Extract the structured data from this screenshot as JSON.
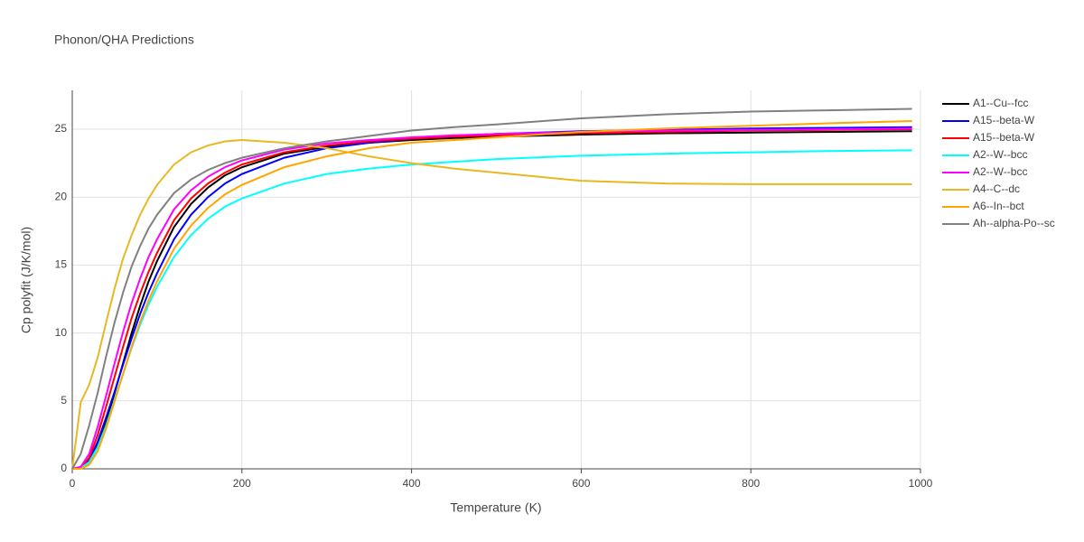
{
  "chart_data": {
    "type": "line",
    "title": "Phonon/QHA Predictions",
    "x_label": "Temperature (K)",
    "y_label": "Cp polyfit (J/K/mol)",
    "x": [
      0,
      10,
      20,
      30,
      40,
      50,
      60,
      70,
      80,
      90,
      100,
      120,
      140,
      160,
      180,
      200,
      250,
      300,
      350,
      400,
      450,
      500,
      600,
      700,
      800,
      900,
      990
    ],
    "series": [
      {
        "name": "A1--Cu--fcc",
        "color": "#000000",
        "values": [
          0,
          0.05,
          0.5,
          1.7,
          3.5,
          5.6,
          7.8,
          10,
          12,
          13.8,
          15.3,
          17.8,
          19.5,
          20.7,
          21.6,
          22.2,
          23.2,
          23.7,
          24.0,
          24.2,
          24.35,
          24.45,
          24.6,
          24.7,
          24.75,
          24.8,
          24.85
        ]
      },
      {
        "name": "A15--beta-W",
        "color": "#0000ff",
        "values": [
          0,
          0.05,
          0.6,
          2.0,
          3.8,
          5.7,
          7.7,
          9.6,
          11.4,
          13.0,
          14.4,
          16.9,
          18.7,
          20.0,
          21.0,
          21.7,
          22.9,
          23.6,
          24.0,
          24.3,
          24.5,
          24.65,
          24.85,
          24.95,
          25.05,
          25.1,
          25.15
        ]
      },
      {
        "name": "A15--beta-W",
        "color": "#ff0000",
        "values": [
          0,
          0.1,
          0.8,
          2.5,
          4.6,
          6.8,
          9.0,
          11.1,
          12.9,
          14.5,
          15.9,
          18.3,
          19.9,
          21.0,
          21.8,
          22.4,
          23.3,
          23.8,
          24.1,
          24.3,
          24.45,
          24.55,
          24.7,
          24.8,
          24.9,
          24.95,
          25.0
        ]
      },
      {
        "name": "A2--W--bcc",
        "color": "#00ffff",
        "values": [
          0,
          0.05,
          0.5,
          1.6,
          3.2,
          5.1,
          7.0,
          8.9,
          10.6,
          12.1,
          13.4,
          15.6,
          17.2,
          18.4,
          19.3,
          19.9,
          21.0,
          21.7,
          22.1,
          22.4,
          22.6,
          22.8,
          23.05,
          23.2,
          23.3,
          23.4,
          23.45
        ]
      },
      {
        "name": "A2--W--bcc",
        "color": "#ff00ff",
        "values": [
          0,
          0.15,
          1.1,
          3.1,
          5.4,
          7.8,
          10.1,
          12.2,
          14.0,
          15.6,
          16.9,
          19.1,
          20.5,
          21.5,
          22.2,
          22.7,
          23.5,
          23.95,
          24.2,
          24.4,
          24.55,
          24.65,
          24.8,
          24.9,
          24.95,
          25.0,
          25.05
        ]
      },
      {
        "name": "A4--C--dc",
        "color": "#e8b820",
        "values": [
          0,
          4.9,
          6.2,
          8.2,
          10.8,
          13.3,
          15.5,
          17.2,
          18.7,
          19.9,
          20.9,
          22.4,
          23.3,
          23.8,
          24.1,
          24.2,
          24.0,
          23.6,
          23.0,
          22.5,
          22.1,
          21.8,
          21.2,
          21.0,
          20.95,
          20.95,
          20.95
        ]
      },
      {
        "name": "A6--In--bct",
        "color": "#ffa500",
        "values": [
          0,
          0.0,
          0.3,
          1.3,
          3.0,
          5.0,
          7.0,
          9.0,
          10.8,
          12.4,
          13.8,
          16.2,
          17.9,
          19.2,
          20.2,
          20.9,
          22.2,
          23.0,
          23.6,
          24.0,
          24.2,
          24.4,
          24.8,
          25.05,
          25.25,
          25.45,
          25.6
        ]
      },
      {
        "name": "Ah--alpha-Po--sc",
        "color": "#808080",
        "values": [
          0,
          1.1,
          3.2,
          5.6,
          8.3,
          10.8,
          13.0,
          14.9,
          16.4,
          17.7,
          18.7,
          20.3,
          21.3,
          22.0,
          22.5,
          22.9,
          23.6,
          24.1,
          24.5,
          24.9,
          25.15,
          25.35,
          25.8,
          26.1,
          26.3,
          26.4,
          26.5
        ]
      }
    ],
    "xlim": [
      0,
      1000
    ],
    "xticks": [
      0,
      200,
      400,
      600,
      800,
      1000
    ],
    "ylim": [
      0,
      27.86
    ],
    "yticks": [
      0,
      5,
      10,
      15,
      20,
      25
    ],
    "grid": true,
    "legend": "right"
  }
}
